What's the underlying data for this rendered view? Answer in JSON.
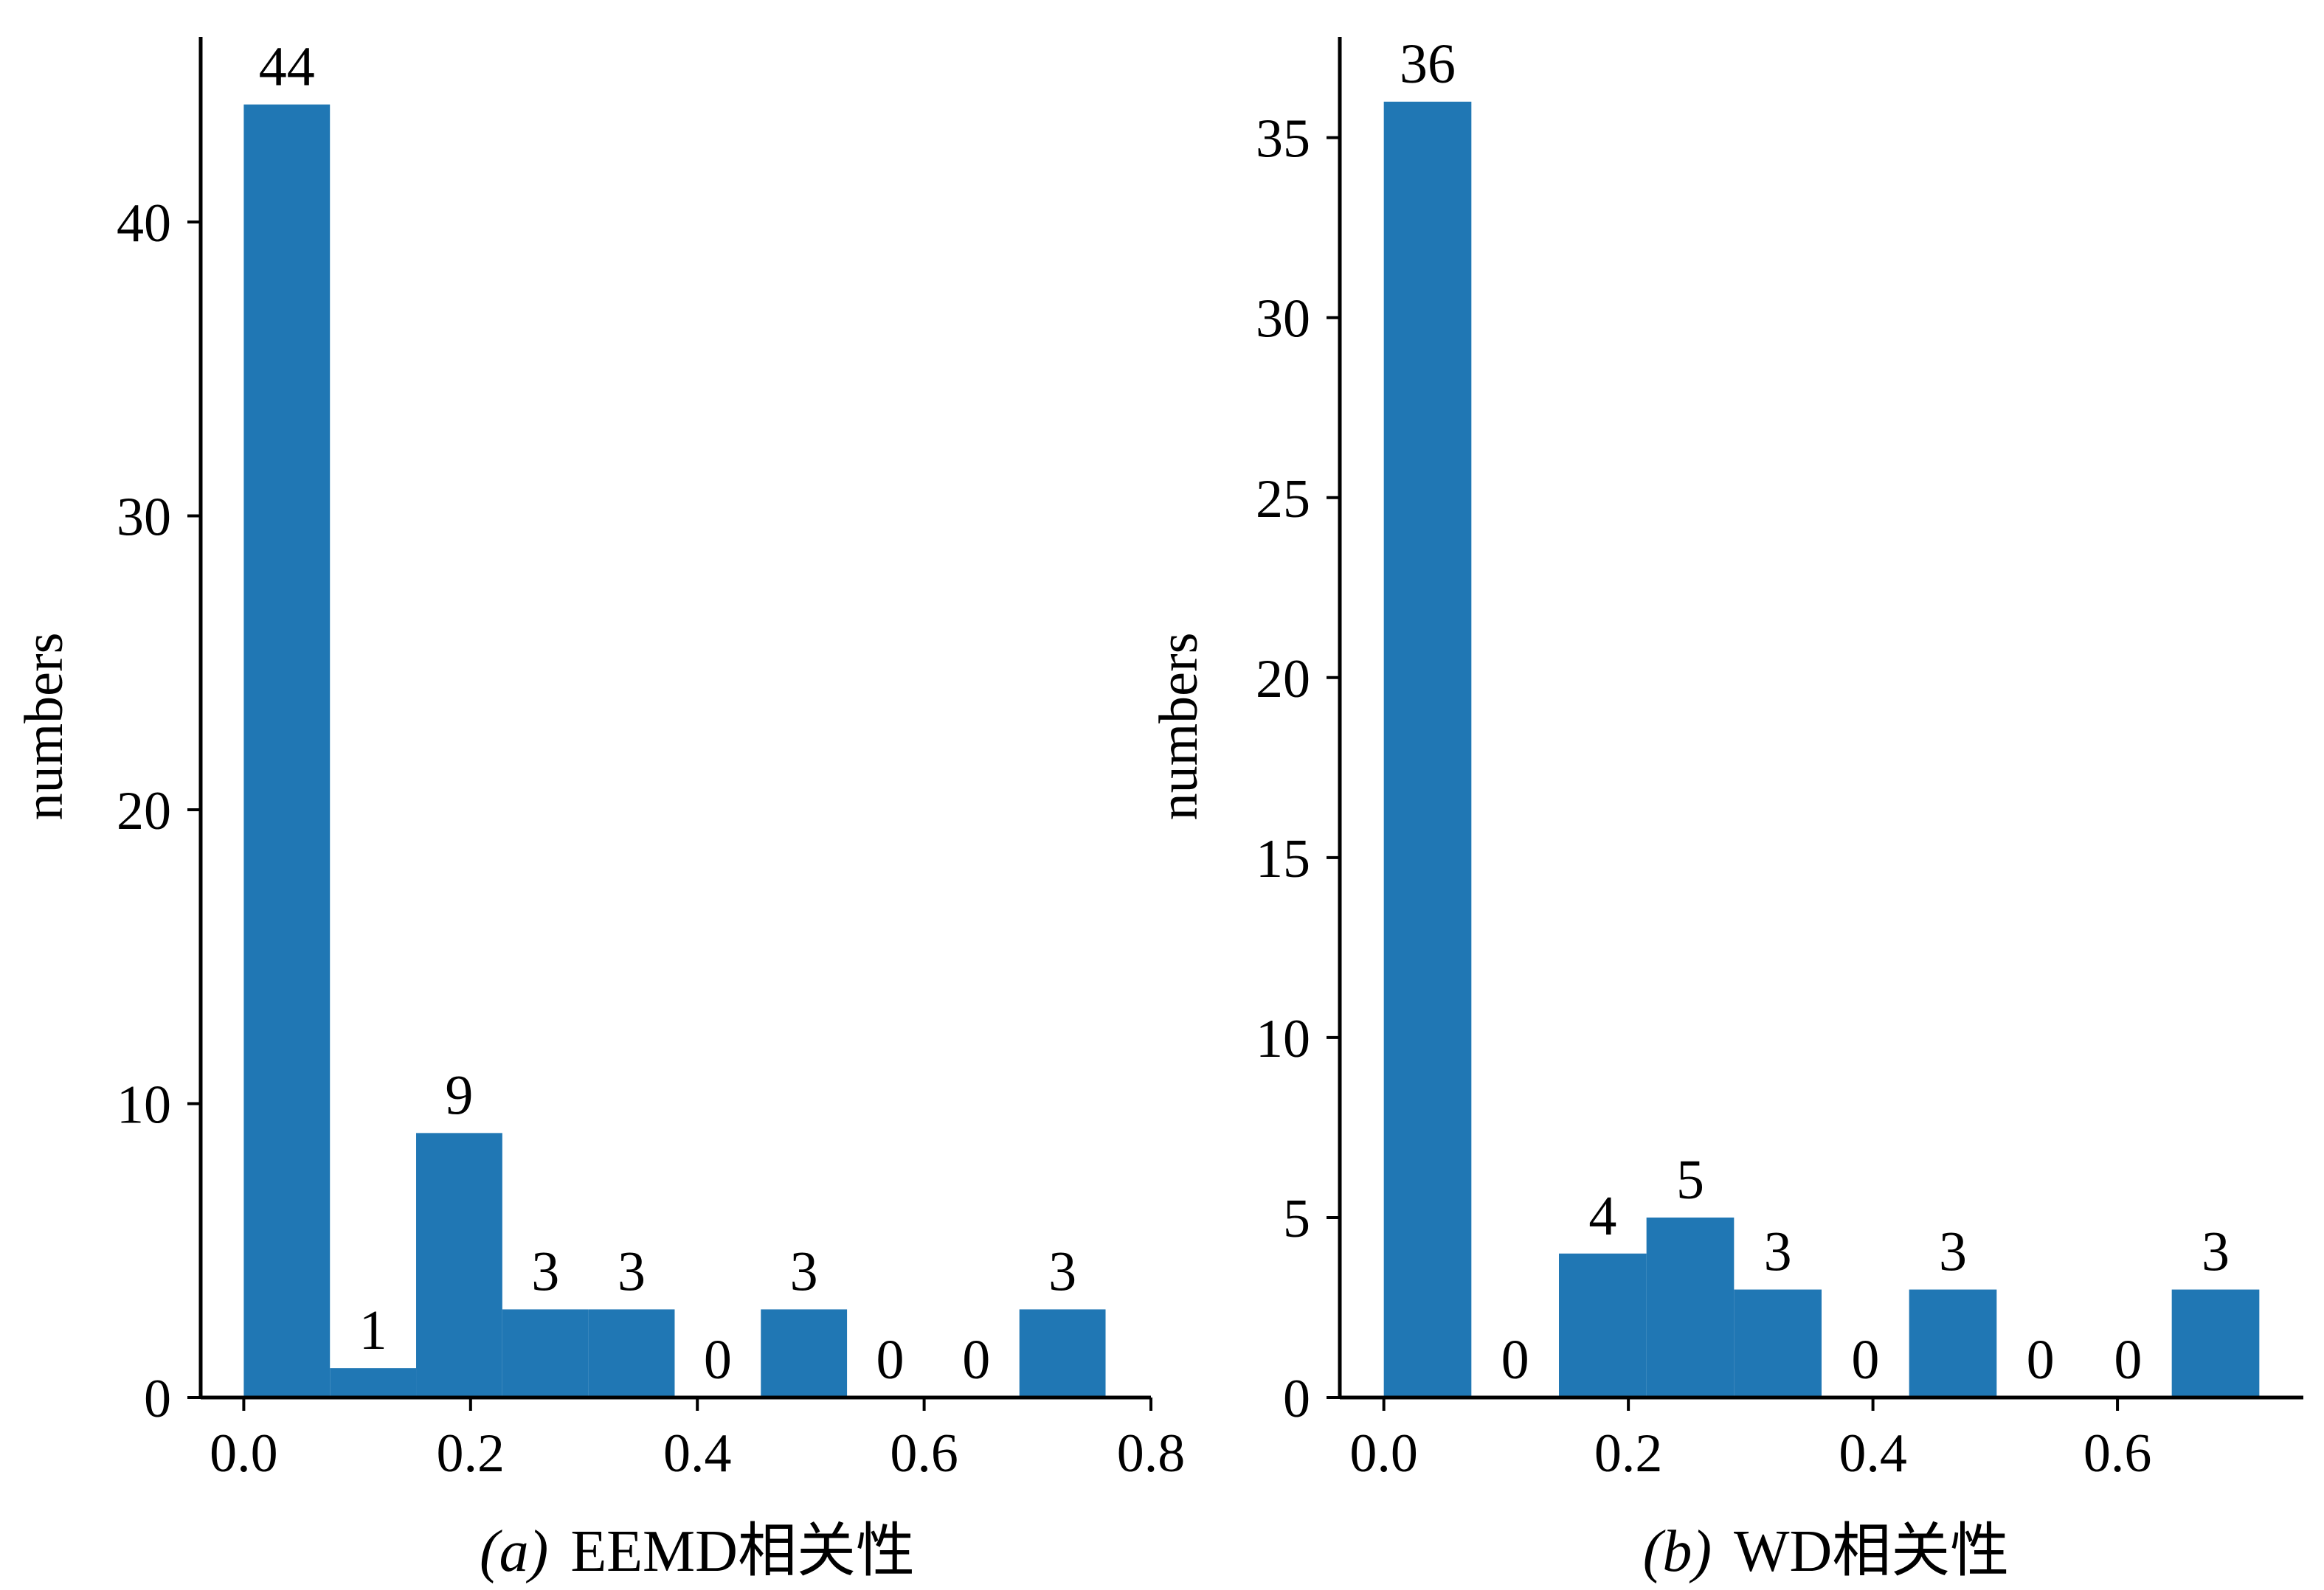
{
  "chart_data": [
    {
      "type": "bar",
      "panel_label": "(a)",
      "caption": "EEMD相关性",
      "xlabel": "",
      "ylabel": "numbers",
      "bin_edges": [
        0.0,
        0.076,
        0.152,
        0.228,
        0.304,
        0.38,
        0.456,
        0.532,
        0.608,
        0.684,
        0.76
      ],
      "values": [
        44,
        1,
        9,
        3,
        3,
        0,
        3,
        0,
        0,
        3
      ],
      "data_labels": [
        "44",
        "1",
        "9",
        "3",
        "3",
        "0",
        "3",
        "0",
        "0",
        "3"
      ],
      "xlim": [
        -0.038,
        0.8
      ],
      "ylim": [
        0,
        46.3
      ],
      "xticks": [
        0.0,
        0.2,
        0.4,
        0.6,
        0.8
      ],
      "xtick_labels": [
        "0.0",
        "0.2",
        "0.4",
        "0.6",
        "0.8"
      ],
      "yticks": [
        0,
        10,
        20,
        30,
        40
      ],
      "ytick_labels": [
        "0",
        "10",
        "20",
        "30",
        "40"
      ],
      "color": "#2077b4",
      "grid": false
    },
    {
      "type": "bar",
      "panel_label": "(b)",
      "caption": "WD相关性",
      "xlabel": "",
      "ylabel": "numbers",
      "bin_edges": [
        0.0,
        0.0716,
        0.1432,
        0.2148,
        0.2864,
        0.358,
        0.4296,
        0.5012,
        0.5728,
        0.6444,
        0.716
      ],
      "values": [
        36,
        0,
        4,
        5,
        3,
        0,
        3,
        0,
        0,
        3
      ],
      "data_labels": [
        "36",
        "0",
        "4",
        "5",
        "3",
        "0",
        "3",
        "0",
        "0",
        "3"
      ],
      "xlim": [
        -0.036,
        0.752
      ],
      "ylim": [
        0,
        37.8
      ],
      "xticks": [
        0.0,
        0.2,
        0.4,
        0.6
      ],
      "xtick_labels": [
        "0.0",
        "0.2",
        "0.4",
        "0.6"
      ],
      "yticks": [
        0,
        5,
        10,
        15,
        20,
        25,
        30,
        35
      ],
      "ytick_labels": [
        "0",
        "5",
        "10",
        "15",
        "20",
        "25",
        "30",
        "35"
      ],
      "color": "#2077b4",
      "grid": false
    }
  ]
}
